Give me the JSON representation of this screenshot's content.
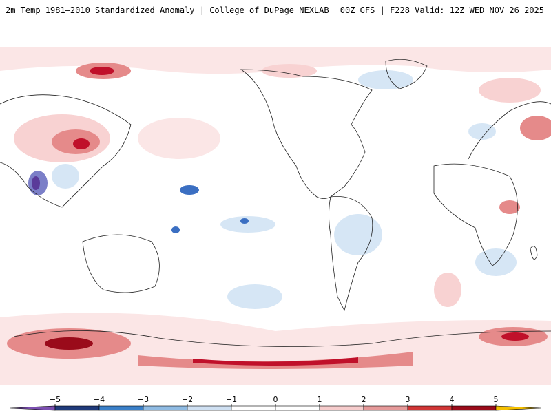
{
  "header": {
    "left_title": "2m Temp 1981–2010 Standardized Anomaly | College of DuPage NEXLAB",
    "right_title": "00Z GFS | F228 Valid: 12Z WED NOV 26 2025"
  },
  "legend": {
    "ticks": [
      -5,
      -4,
      -3,
      -2,
      -1,
      0,
      1,
      2,
      3,
      4,
      5
    ],
    "tick_labels": [
      "−5",
      "−4",
      "−3",
      "−2",
      "−1",
      "0",
      "1",
      "2",
      "3",
      "4",
      "5"
    ],
    "colors": [
      "#7b4fb0",
      "#1f3a7a",
      "#3a7fc8",
      "#8fbbe3",
      "#cfe0f2",
      "#ffffff",
      "#ffffff",
      "#f6cccc",
      "#e69a9a",
      "#d03535",
      "#9a0b1a",
      "#f5c000"
    ]
  },
  "colors": {
    "strong_warm": "#c0102a",
    "moderate_warm": "#e58a8a",
    "weak_warm": "#f8d2d2",
    "faint_warm": "#fbe6e6",
    "weak_cool": "#d6e6f5",
    "moderate_cool": "#a9cbeb",
    "strong_cool": "#3b6fc2",
    "coastline": "#222222"
  }
}
